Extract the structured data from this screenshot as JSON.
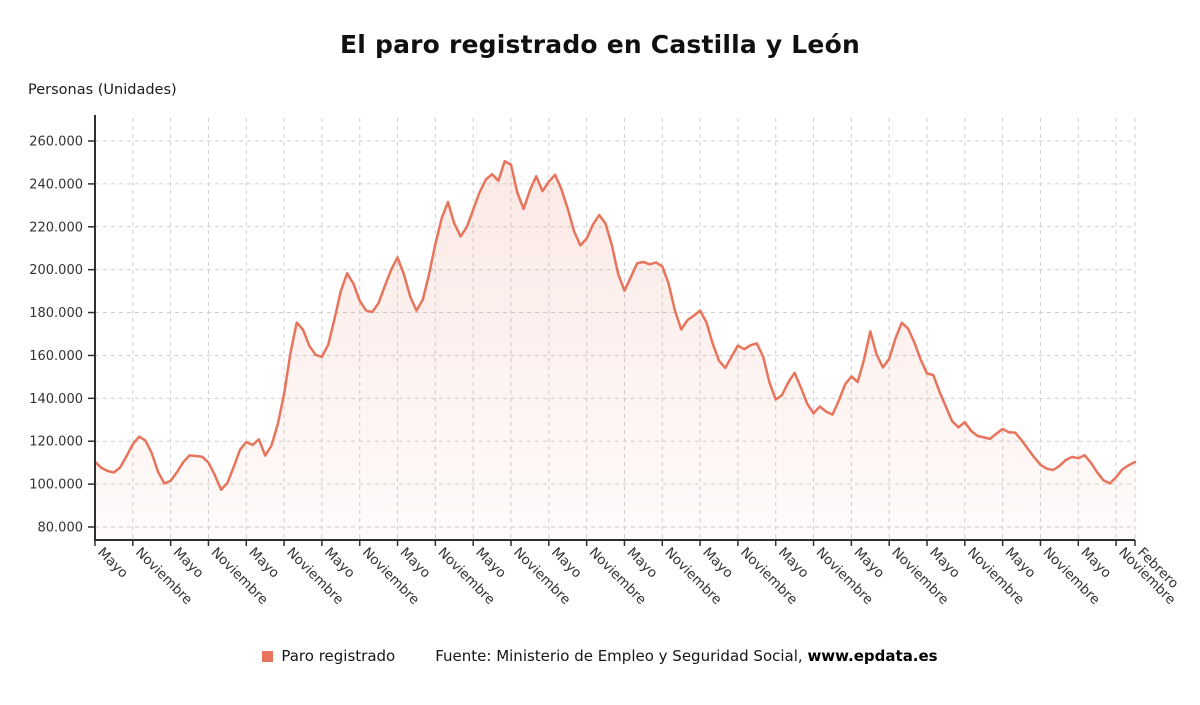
{
  "title": "El paro registrado en Castilla y León",
  "y_axis_title": "Personas (Unidades)",
  "legend": {
    "series_label": "Paro registrado",
    "source_prefix": "Fuente: Ministerio de Empleo y Seguridad Social, ",
    "source_link": "www.epdata.es"
  },
  "colors": {
    "line": "#e8745c",
    "fill_top": "rgba(232,116,92,0.16)",
    "fill_bottom": "rgba(232,116,92,0.03)",
    "grid": "#cfcfcf",
    "axis": "#2f2f2f",
    "tick_text": "#333333"
  },
  "chart_data": {
    "type": "area",
    "title": "El paro registrado en Castilla y León",
    "xlabel": "",
    "ylabel": "Personas (Unidades)",
    "ylim": [
      80000,
      260000
    ],
    "y_tick_step": 20000,
    "grid": true,
    "legend_position": "bottom",
    "x_ticks": [
      {
        "i": 0,
        "label": "Mayo"
      },
      {
        "i": 6,
        "label": "Noviembre"
      },
      {
        "i": 12,
        "label": "Mayo"
      },
      {
        "i": 18,
        "label": "Noviembre"
      },
      {
        "i": 24,
        "label": "Mayo"
      },
      {
        "i": 30,
        "label": "Noviembre"
      },
      {
        "i": 36,
        "label": "Mayo"
      },
      {
        "i": 42,
        "label": "Noviembre"
      },
      {
        "i": 48,
        "label": "Mayo"
      },
      {
        "i": 54,
        "label": "Noviembre"
      },
      {
        "i": 60,
        "label": "Mayo"
      },
      {
        "i": 66,
        "label": "Noviembre"
      },
      {
        "i": 72,
        "label": "Mayo"
      },
      {
        "i": 78,
        "label": "Noviembre"
      },
      {
        "i": 84,
        "label": "Mayo"
      },
      {
        "i": 90,
        "label": "Noviembre"
      },
      {
        "i": 96,
        "label": "Mayo"
      },
      {
        "i": 102,
        "label": "Noviembre"
      },
      {
        "i": 108,
        "label": "Mayo"
      },
      {
        "i": 114,
        "label": "Noviembre"
      },
      {
        "i": 120,
        "label": "Mayo"
      },
      {
        "i": 126,
        "label": "Noviembre"
      },
      {
        "i": 132,
        "label": "Mayo"
      },
      {
        "i": 138,
        "label": "Noviembre"
      },
      {
        "i": 144,
        "label": "Mayo"
      },
      {
        "i": 150,
        "label": "Noviembre"
      },
      {
        "i": 156,
        "label": "Mayo"
      },
      {
        "i": 162,
        "label": "Noviembre"
      },
      {
        "i": 165,
        "label": "Febrero"
      }
    ],
    "series": [
      {
        "name": "Paro registrado",
        "color": "#e8745c",
        "values": [
          110400,
          107600,
          106100,
          105400,
          107800,
          113000,
          118600,
          122100,
          120400,
          114500,
          105800,
          100300,
          101500,
          105500,
          110200,
          113400,
          113100,
          112800,
          110000,
          104200,
          97400,
          100500,
          108000,
          116000,
          119600,
          118300,
          120900,
          113300,
          118000,
          128000,
          142000,
          161000,
          175300,
          172000,
          164500,
          160300,
          159300,
          165000,
          177000,
          190000,
          198300,
          193500,
          185500,
          181000,
          180200,
          184500,
          192500,
          200000,
          205700,
          198000,
          187500,
          180900,
          186000,
          198000,
          212000,
          224000,
          231500,
          221500,
          215500,
          220000,
          228000,
          236000,
          242000,
          244500,
          241500,
          250600,
          249000,
          236000,
          228300,
          237000,
          243600,
          236600,
          241000,
          244300,
          237500,
          228500,
          218000,
          211300,
          214500,
          221000,
          225500,
          221500,
          211500,
          198000,
          190200,
          196500,
          202900,
          203600,
          202500,
          203400,
          201500,
          193500,
          181000,
          172100,
          176500,
          178600,
          180900,
          175500,
          165500,
          157500,
          154200,
          159500,
          164600,
          162900,
          164800,
          165600,
          159500,
          147500,
          139400,
          141500,
          147500,
          151900,
          145000,
          137500,
          133000,
          136200,
          133800,
          132400,
          139000,
          146500,
          150200,
          147600,
          158000,
          171200,
          160500,
          154400,
          158500,
          168000,
          175200,
          172500,
          166000,
          158000,
          151600,
          150900,
          143000,
          136100,
          129300,
          126500,
          128900,
          124800,
          122500,
          121800,
          121100,
          123500,
          125700,
          124200,
          124000,
          120500,
          116500,
          112500,
          109000,
          107200,
          106600,
          108500,
          111200,
          112700,
          112100,
          113500,
          110000,
          105500,
          101800,
          100300,
          103200,
          106900,
          108800,
          110300
        ]
      }
    ]
  }
}
